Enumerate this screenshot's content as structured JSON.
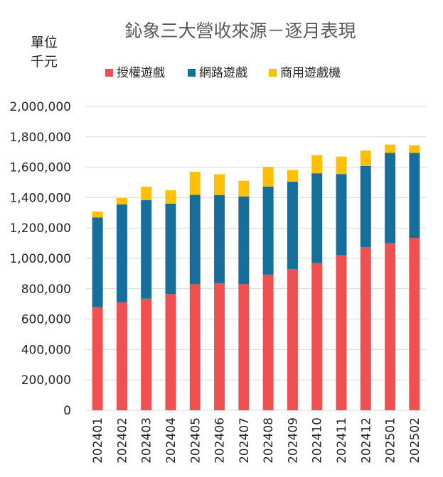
{
  "chart_data": {
    "type": "bar",
    "stacked": true,
    "title": "鈊象三大營收來源－逐月表現",
    "unit_label": [
      "單位",
      "千元"
    ],
    "categories": [
      "202401",
      "202402",
      "202403",
      "202404",
      "202405",
      "202406",
      "202407",
      "202408",
      "202409",
      "202410",
      "202411",
      "202412",
      "202501",
      "202502"
    ],
    "series": [
      {
        "name": "授權遊戲",
        "color": "#f05050",
        "values": [
          680000,
          710000,
          735000,
          765000,
          830000,
          835000,
          830000,
          893000,
          930000,
          970000,
          1020000,
          1075000,
          1100000,
          1135000
        ]
      },
      {
        "name": "網路遊戲",
        "color": "#156f9a",
        "values": [
          590000,
          645000,
          648000,
          595000,
          588000,
          582000,
          578000,
          580000,
          575000,
          590000,
          535000,
          533000,
          594000,
          560000
        ]
      },
      {
        "name": "商用遊戲機",
        "color": "#ffc000",
        "values": [
          38000,
          42000,
          88000,
          88000,
          152000,
          137000,
          103000,
          130000,
          77000,
          120000,
          115000,
          102000,
          55000,
          50000
        ]
      }
    ],
    "ylim": [
      0,
      2000000
    ],
    "yticks": [
      0,
      200000,
      400000,
      600000,
      800000,
      1000000,
      1200000,
      1400000,
      1600000,
      1800000,
      2000000
    ],
    "ytick_labels": [
      "0",
      "200,000",
      "400,000",
      "600,000",
      "800,000",
      "1,000,000",
      "1,200,000",
      "1,400,000",
      "1,600,000",
      "1,800,000",
      "2,000,000"
    ],
    "grid": true,
    "legend_position": "top"
  }
}
